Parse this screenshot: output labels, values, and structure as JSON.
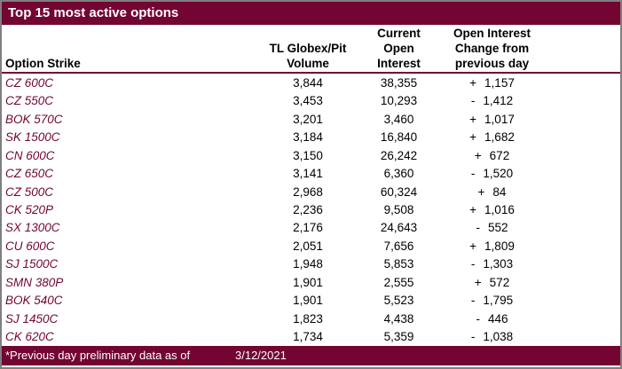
{
  "title": "Top 15 most active options",
  "columns": {
    "strike": "Option Strike",
    "volume": [
      "TL Globex/Pit",
      "Volume"
    ],
    "open_interest": [
      "Current",
      "Open",
      "Interest"
    ],
    "change": [
      "Open Interest",
      "Change from",
      "previous day"
    ]
  },
  "rows": [
    {
      "strike": "CZ 600C",
      "volume": "3,844",
      "open_interest": "38,355",
      "change_sign": "+",
      "change_value": "1,157"
    },
    {
      "strike": "CZ 550C",
      "volume": "3,453",
      "open_interest": "10,293",
      "change_sign": "-",
      "change_value": "1,412"
    },
    {
      "strike": "BOK 570C",
      "volume": "3,201",
      "open_interest": "3,460",
      "change_sign": "+",
      "change_value": "1,017"
    },
    {
      "strike": "SK 1500C",
      "volume": "3,184",
      "open_interest": "16,840",
      "change_sign": "+",
      "change_value": "1,682"
    },
    {
      "strike": "CN 600C",
      "volume": "3,150",
      "open_interest": "26,242",
      "change_sign": "+",
      "change_value": "672"
    },
    {
      "strike": "CZ 650C",
      "volume": "3,141",
      "open_interest": "6,360",
      "change_sign": "-",
      "change_value": "1,520"
    },
    {
      "strike": "CZ 500C",
      "volume": "2,968",
      "open_interest": "60,324",
      "change_sign": "+",
      "change_value": "84"
    },
    {
      "strike": "CK 520P",
      "volume": "2,236",
      "open_interest": "9,508",
      "change_sign": "+",
      "change_value": "1,016"
    },
    {
      "strike": "SX 1300C",
      "volume": "2,176",
      "open_interest": "24,643",
      "change_sign": "-",
      "change_value": "552"
    },
    {
      "strike": "CU 600C",
      "volume": "2,051",
      "open_interest": "7,656",
      "change_sign": "+",
      "change_value": "1,809"
    },
    {
      "strike": "SJ 1500C",
      "volume": "1,948",
      "open_interest": "5,853",
      "change_sign": "-",
      "change_value": "1,303"
    },
    {
      "strike": "SMN 380P",
      "volume": "1,901",
      "open_interest": "2,555",
      "change_sign": "+",
      "change_value": "572"
    },
    {
      "strike": "BOK 540C",
      "volume": "1,901",
      "open_interest": "5,523",
      "change_sign": "-",
      "change_value": "1,795"
    },
    {
      "strike": "SJ 1450C",
      "volume": "1,823",
      "open_interest": "4,438",
      "change_sign": "-",
      "change_value": "446"
    },
    {
      "strike": "CK 620C",
      "volume": "1,734",
      "open_interest": "5,359",
      "change_sign": "-",
      "change_value": "1,038"
    }
  ],
  "footer": {
    "note": "*Previous day preliminary data as of",
    "date": "3/12/2021"
  },
  "colors": {
    "maroon": "#730532",
    "strike_text": "#730532",
    "border_gray": "#7F7F7F",
    "number_text": "#000000"
  }
}
